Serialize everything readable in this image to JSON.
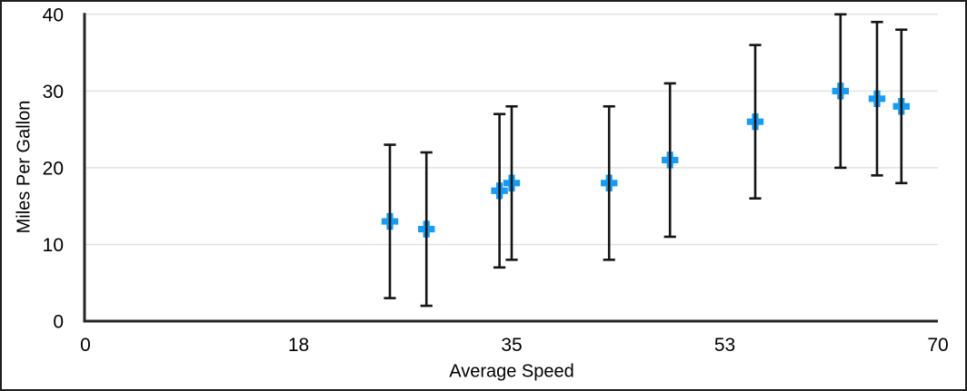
{
  "colors": {
    "marker": "#189bf2",
    "error_bar": "#141414",
    "axis": "#262626",
    "gridline": "#e2e2e2",
    "text": "#000000",
    "background": "#ffffff",
    "frame_border": "#1e1e1e"
  },
  "chart_data": {
    "type": "scatter",
    "title": "",
    "xlabel": "Average Speed",
    "ylabel": "Miles Per Gallon",
    "xlim": [
      0,
      70
    ],
    "ylim": [
      0,
      40
    ],
    "grid": "horizontal-only",
    "legend_position": "none",
    "marker_style": "plus",
    "error_bars": "vertical, symmetric ±10, with end caps",
    "x_ticks": [
      {
        "value": 0,
        "label": "0"
      },
      {
        "value": 17.5,
        "label": "18"
      },
      {
        "value": 35,
        "label": "35"
      },
      {
        "value": 52.5,
        "label": "53"
      },
      {
        "value": 70,
        "label": "70"
      }
    ],
    "y_ticks": [
      {
        "value": 0,
        "label": "0"
      },
      {
        "value": 10,
        "label": "10"
      },
      {
        "value": 20,
        "label": "20"
      },
      {
        "value": 30,
        "label": "30"
      },
      {
        "value": 40,
        "label": "40"
      }
    ],
    "points": [
      {
        "x": 25,
        "y": 13,
        "error_y": 10
      },
      {
        "x": 28,
        "y": 12,
        "error_y": 10
      },
      {
        "x": 34,
        "y": 17,
        "error_y": 10
      },
      {
        "x": 35,
        "y": 18,
        "error_y": 10
      },
      {
        "x": 43,
        "y": 18,
        "error_y": 10
      },
      {
        "x": 48,
        "y": 21,
        "error_y": 10
      },
      {
        "x": 55,
        "y": 26,
        "error_y": 10
      },
      {
        "x": 62,
        "y": 30,
        "error_y": 10
      },
      {
        "x": 65,
        "y": 29,
        "error_y": 10
      },
      {
        "x": 67,
        "y": 28,
        "error_y": 10
      }
    ]
  }
}
